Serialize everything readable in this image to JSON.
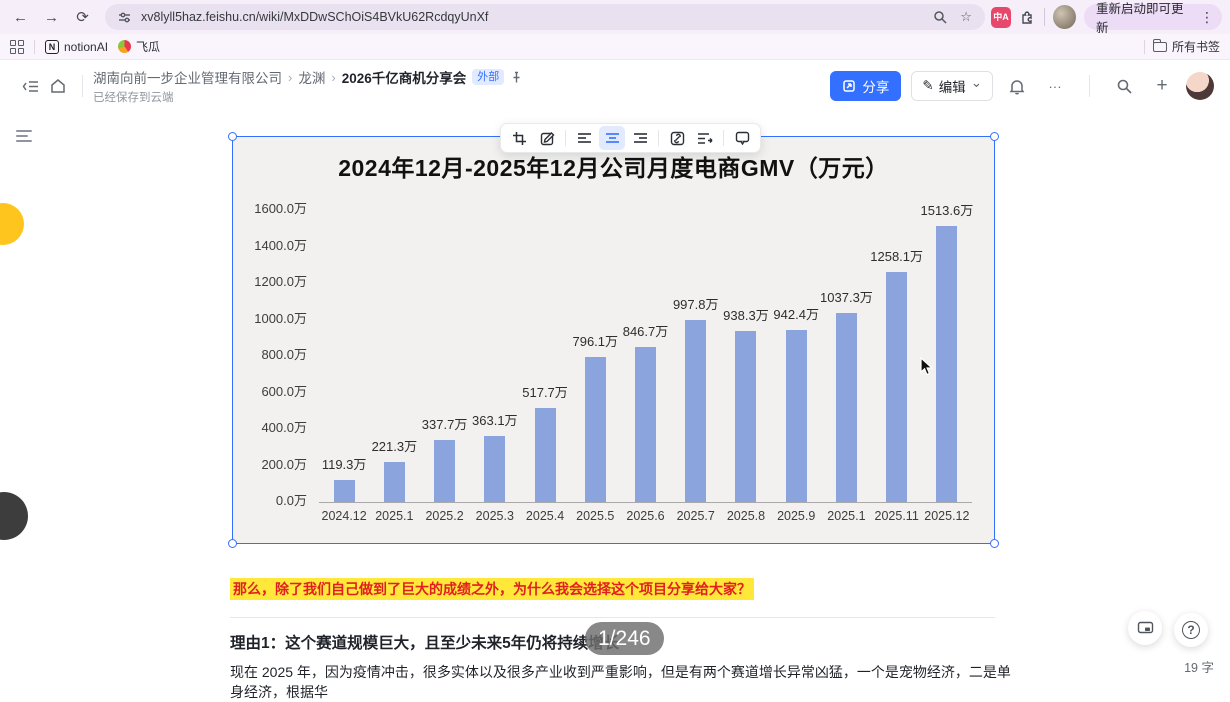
{
  "browser": {
    "url": "xv8lyll5haz.feishu.cn/wiki/MxDDwSChOiS4BVkU62RcdqyUnXf",
    "update_button": "重新启动即可更新",
    "translate_badge": "中A",
    "bookmarks": {
      "notion": "notionAI",
      "feigua": "飞瓜"
    },
    "all_bookmarks": "所有书签"
  },
  "icons": {
    "back": "←",
    "forward": "→",
    "reload": "⟳",
    "star": "☆",
    "kebab": "⋮",
    "more": "···",
    "plus": "+",
    "chevron_down": "⌄",
    "crumb_sep": "›",
    "pencil": "✎",
    "help": "?"
  },
  "header": {
    "breadcrumb": [
      "湖南向前一步企业管理有限公司",
      "龙渊",
      "2026千亿商机分享会"
    ],
    "external_badge": "外部",
    "save_status": "已经保存到云端",
    "share_label": "分享",
    "edit_label": "编辑"
  },
  "chart_data": {
    "type": "bar",
    "title": "2024年12月-2025年12月公司月度电商GMV（万元）",
    "categories": [
      "2024.12",
      "2025.1",
      "2025.2",
      "2025.3",
      "2025.4",
      "2025.5",
      "2025.6",
      "2025.7",
      "2025.8",
      "2025.9",
      "2025.1",
      "2025.11",
      "2025.12"
    ],
    "values": [
      119.3,
      221.3,
      337.7,
      363.1,
      517.7,
      796.1,
      846.7,
      997.8,
      938.3,
      942.4,
      1037.3,
      1258.1,
      1513.6
    ],
    "value_labels": [
      "119.3万",
      "221.3万",
      "337.7万",
      "363.1万",
      "517.7万",
      "796.1万",
      "846.7万",
      "997.8万",
      "938.3万",
      "942.4万",
      "1037.3万",
      "1258.1万",
      "1513.6万"
    ],
    "y_ticks": [
      "0.0万",
      "200.0万",
      "400.0万",
      "600.0万",
      "800.0万",
      "1000.0万",
      "1200.0万",
      "1400.0万",
      "1600.0万"
    ],
    "ylim": [
      0,
      1600
    ],
    "bar_color": "#8CA4DE",
    "grid": false,
    "legend": "none",
    "xlabel": "",
    "ylabel": ""
  },
  "doc": {
    "highlight_question": "那么，除了我们自己做到了巨大的成绩之外，为什么我会选择这个项目分享给大家？",
    "reason_heading": "理由1：这个赛道规模巨大，且至少未来5年仍将持续增长",
    "body_text": "现在 2025 年，因为疫情冲击，很多实体以及很多产业收到严重影响，但是有两个赛道增长异常凶猛，一个是宠物经济，二是单身经济，根据华",
    "page_indicator": "1/246",
    "word_count": "19 字"
  },
  "colors": {
    "accent_blue": "#3370ff",
    "bar": "#8CA4DE",
    "highlight_bg": "#ffe83a",
    "highlight_text": "#e02020"
  }
}
